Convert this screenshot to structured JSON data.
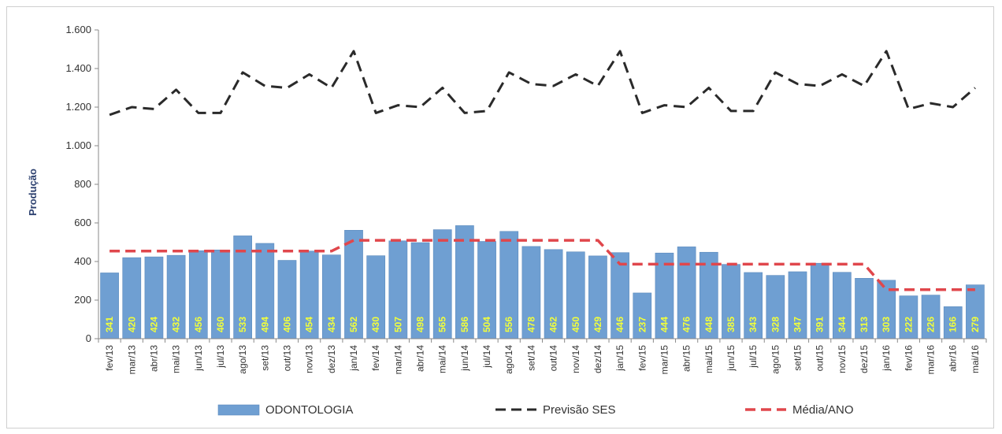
{
  "chart_data": {
    "type": "bar",
    "ylabel": "Produção",
    "ylim": [
      0,
      1600
    ],
    "yticks": [
      0,
      200,
      400,
      600,
      800,
      1000,
      1200,
      1400,
      1600
    ],
    "ytick_labels": [
      "0",
      "200",
      "400",
      "600",
      "800",
      "1.000",
      "1.200",
      "1.400",
      "1.600"
    ],
    "legend_position": "bottom",
    "categories": [
      "fev/13",
      "mar/13",
      "abr/13",
      "mai/13",
      "jun/13",
      "jul/13",
      "ago/13",
      "set/13",
      "out/13",
      "nov/13",
      "dez/13",
      "jan/14",
      "fev/14",
      "mar/14",
      "abr/14",
      "mai/14",
      "jun/14",
      "jul/14",
      "ago/14",
      "set/14",
      "out/14",
      "nov/14",
      "dez/14",
      "jan/15",
      "fev/15",
      "mar/15",
      "abr/15",
      "mai/15",
      "jun/15",
      "jul/15",
      "ago/15",
      "set/15",
      "out/15",
      "nov/15",
      "dez/15",
      "jan/16",
      "fev/16",
      "mar/16",
      "abr/16",
      "mai/16"
    ],
    "series": [
      {
        "name": "ODONTOLOGIA",
        "kind": "bar",
        "color": "#6f9fd2",
        "values": [
          341,
          420,
          424,
          432,
          456,
          460,
          533,
          494,
          406,
          454,
          434,
          562,
          430,
          507,
          498,
          565,
          586,
          504,
          556,
          478,
          462,
          450,
          429,
          446,
          237,
          444,
          476,
          448,
          385,
          343,
          328,
          347,
          391,
          344,
          313,
          303,
          222,
          226,
          166,
          279
        ]
      },
      {
        "name": "Previsão SES",
        "kind": "line",
        "color": "#2a2a2a",
        "dash": "dashed",
        "values": [
          1160,
          1200,
          1190,
          1290,
          1170,
          1170,
          1380,
          1310,
          1300,
          1370,
          1300,
          1490,
          1170,
          1210,
          1200,
          1300,
          1170,
          1180,
          1380,
          1320,
          1310,
          1370,
          1310,
          1490,
          1170,
          1210,
          1200,
          1300,
          1180,
          1180,
          1380,
          1320,
          1310,
          1370,
          1310,
          1490,
          1190,
          1220,
          1200,
          1300
        ]
      },
      {
        "name": "Média/ANO",
        "kind": "line",
        "color": "#e0474c",
        "dash": "dashed",
        "values": [
          454,
          454,
          454,
          454,
          454,
          454,
          454,
          454,
          454,
          454,
          454,
          510,
          510,
          510,
          510,
          510,
          510,
          510,
          510,
          510,
          510,
          510,
          510,
          386,
          386,
          386,
          386,
          386,
          386,
          386,
          386,
          386,
          386,
          386,
          386,
          254,
          254,
          254,
          254,
          254
        ]
      }
    ]
  }
}
